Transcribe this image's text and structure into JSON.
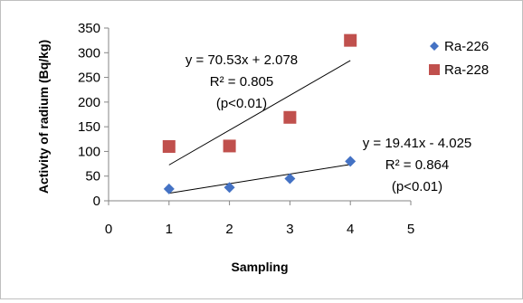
{
  "chart_data": {
    "type": "scatter",
    "xlabel": "Sampling",
    "ylabel": "Activity of radium (Bq/kg)",
    "xlim": [
      0,
      5
    ],
    "ylim": [
      0,
      350
    ],
    "x_ticks": [
      "0",
      "1",
      "2",
      "3",
      "4",
      "5"
    ],
    "y_ticks": [
      "0",
      "50",
      "100",
      "150",
      "200",
      "250",
      "300",
      "350"
    ],
    "grid": false,
    "legend_position": "right",
    "series": [
      {
        "name": "Ra-226",
        "marker": "diamond",
        "color": "#4472c4",
        "x": [
          1,
          2,
          3,
          4
        ],
        "y": [
          24,
          27,
          45,
          80
        ],
        "trendline": {
          "slope": 19.41,
          "intercept": -4.025,
          "color": "#000000"
        },
        "annotation": [
          "y = 19.41x - 4.025",
          "R² = 0.864",
          "(p<0.01)"
        ]
      },
      {
        "name": "Ra-228",
        "marker": "square",
        "color": "#c0504d",
        "x": [
          1,
          2,
          3,
          4
        ],
        "y": [
          110,
          111,
          169,
          325
        ],
        "trendline": {
          "slope": 70.53,
          "intercept": 2.078,
          "color": "#000000"
        },
        "annotation": [
          "y = 70.53x + 2.078",
          "R² = 0.805",
          "(p<0.01)"
        ]
      }
    ]
  }
}
